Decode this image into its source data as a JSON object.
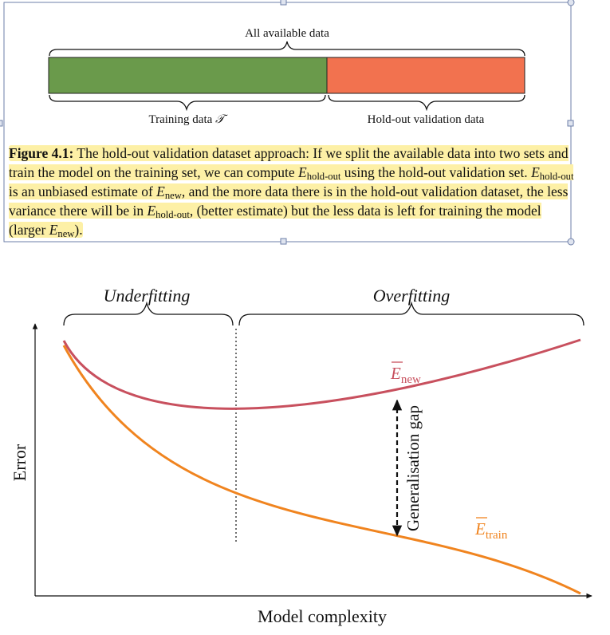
{
  "top_figure": {
    "all_label": "All available data",
    "training_label": "Training data",
    "training_symbol": "𝒯",
    "holdout_label": "Hold-out validation data",
    "train_color": "#6a9a4b",
    "holdout_color": "#f2724f"
  },
  "caption": {
    "label": "Figure 4.1:",
    "t1": " The hold-out validation dataset approach: If we split the available data into two sets and train the model on the training set, we can compute ",
    "E": "E",
    "sub_holdout": "hold-out",
    "sub_new": "new",
    "t2": " using the hold-out validation set. ",
    "t3": " is an unbiased estimate of ",
    "t4": ", and the more data there is in the hold-out validation dataset, the less variance there will be in ",
    "t5": ", (better estimate) but the less data is left for training the model (larger ",
    "t6": ").",
    "highlight_color": "#fdf0a6"
  },
  "plot": {
    "underfitting_label": "Underfitting",
    "overfitting_label": "Overfitting",
    "y_axis_label": "Error",
    "x_axis_label": "Model complexity",
    "e_new_sub": "new",
    "e_train_sub": "train",
    "gap_label": "Generalisation gap",
    "e_new_color": "#c8505e",
    "e_train_color": "#f0841f"
  }
}
